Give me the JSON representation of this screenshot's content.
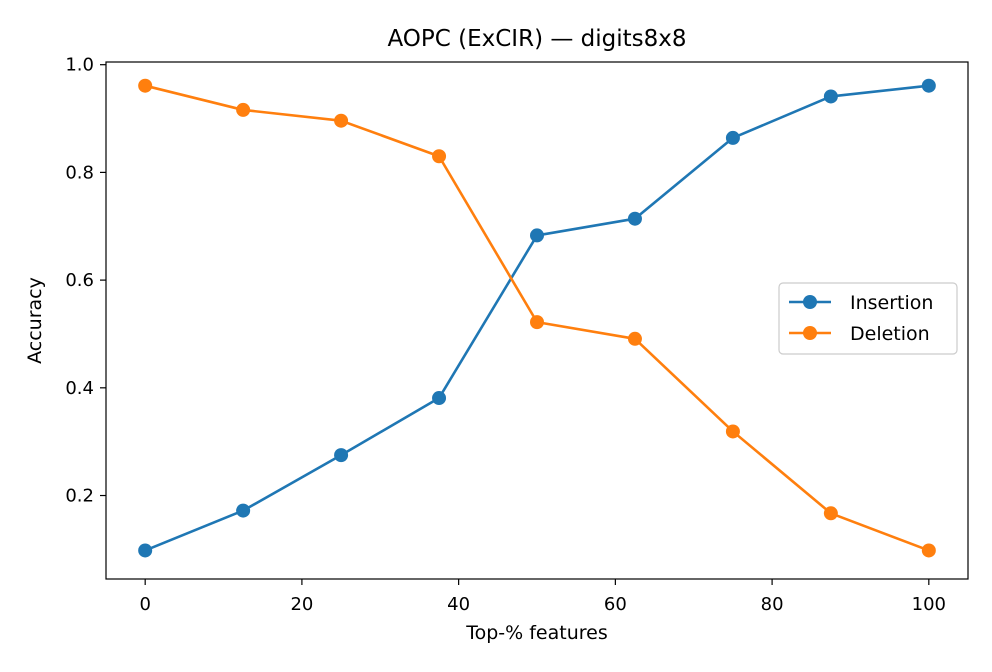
{
  "chart_data": {
    "type": "line",
    "title": "AOPC (ExCIR) — digits8x8",
    "xlabel": "Top-% features",
    "ylabel": "Accuracy",
    "xlim": [
      -5,
      105
    ],
    "ylim": [
      0.045,
      1.005
    ],
    "xticks": [
      0,
      20,
      40,
      60,
      80,
      100
    ],
    "xtick_labels": [
      "0",
      "20",
      "40",
      "60",
      "80",
      "100"
    ],
    "yticks": [
      0.2,
      0.4,
      0.6,
      0.8,
      1.0
    ],
    "ytick_labels": [
      "0.2",
      "0.4",
      "0.6",
      "0.8",
      "1.0"
    ],
    "grid": false,
    "legend_position": "center-right",
    "x": [
      0,
      12.5,
      25,
      37.5,
      50,
      62.5,
      75,
      87.5,
      100
    ],
    "series": [
      {
        "name": "Insertion",
        "color": "#1f77b4",
        "marker": "circle",
        "values": [
          0.098,
          0.172,
          0.275,
          0.381,
          0.683,
          0.714,
          0.864,
          0.941,
          0.961
        ]
      },
      {
        "name": "Deletion",
        "color": "#ff7f0e",
        "marker": "circle",
        "values": [
          0.961,
          0.916,
          0.896,
          0.83,
          0.522,
          0.491,
          0.319,
          0.167,
          0.098
        ]
      }
    ]
  }
}
